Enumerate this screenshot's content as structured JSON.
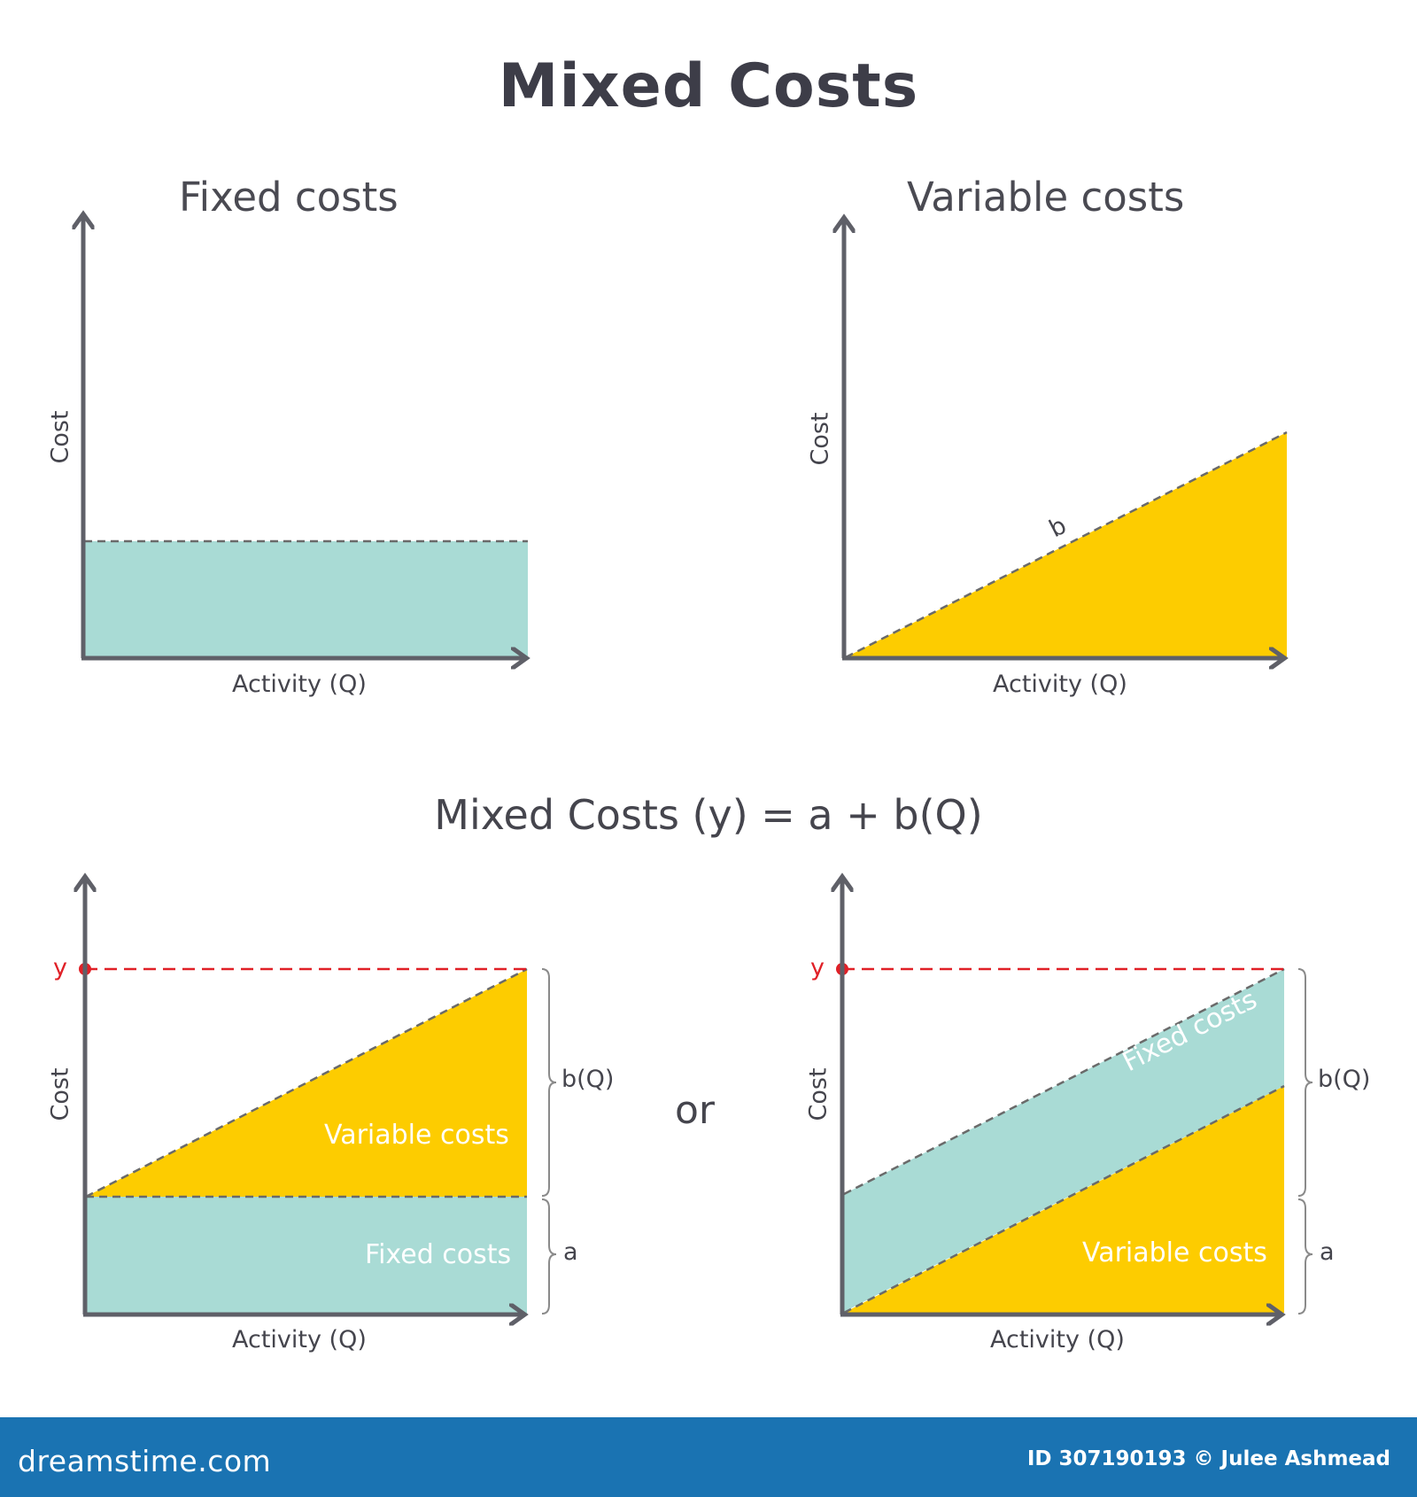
{
  "title": "Mixed Costs",
  "panels": {
    "fixed": {
      "title": "Fixed costs",
      "xlabel": "Activity (Q)",
      "ylabel": "Cost"
    },
    "variable": {
      "title": "Variable costs",
      "xlabel": "Activity (Q)",
      "ylabel": "Cost",
      "slope_label": "b"
    },
    "mixed_left": {
      "xlabel": "Activity (Q)",
      "ylabel": "Cost",
      "y_marker": "y",
      "variable_label": "Variable costs",
      "fixed_label": "Fixed costs",
      "brace_top": "b(Q)",
      "brace_bottom": "a"
    },
    "mixed_right": {
      "xlabel": "Activity (Q)",
      "ylabel": "Cost",
      "y_marker": "y",
      "fixed_label": "Fixed costs",
      "variable_label": "Variable costs",
      "brace_top": "b(Q)",
      "brace_bottom": "a"
    }
  },
  "formula": "Mixed Costs (y) = a + b(Q)",
  "or_text": "or",
  "colors": {
    "fixed": "#a9dbd5",
    "variable": "#fdcc00",
    "axis": "#5f6068",
    "dashed": "#6a6a6a",
    "red": "#e02027",
    "footer": "#1a73b2"
  },
  "footer": {
    "brand": "dreamstime.com",
    "credit": "ID 307190193 © Julee Ashmead"
  }
}
